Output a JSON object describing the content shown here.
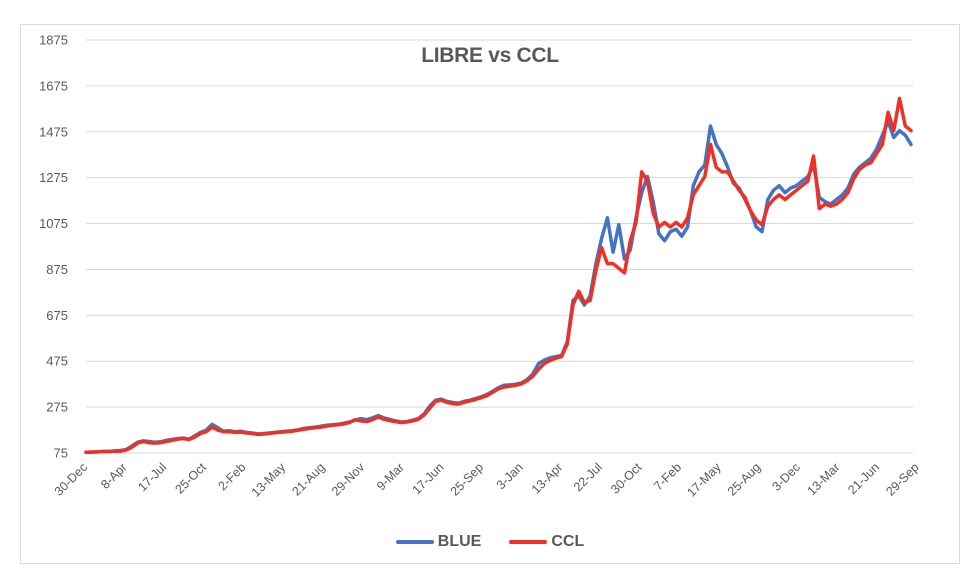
{
  "chart_data": {
    "type": "line",
    "title": "LIBRE vs CCL",
    "xlabel": "",
    "ylabel": "",
    "ylim": [
      75,
      1875
    ],
    "yticks": [
      75,
      275,
      475,
      675,
      875,
      1075,
      1275,
      1475,
      1675,
      1875
    ],
    "grid": true,
    "legend_position": "bottom",
    "x_tick_labels": [
      "30-Dec",
      "8-Apr",
      "17-Jul",
      "25-Oct",
      "2-Feb",
      "13-May",
      "21-Aug",
      "29-Nov",
      "9-Mar",
      "17-Jun",
      "25-Sep",
      "3-Jan",
      "13-Apr",
      "22-Jul",
      "30-Oct",
      "7-Feb",
      "17-May",
      "25-Aug",
      "3-Dec",
      "13-Mar",
      "21-Jun",
      "29-Sep"
    ],
    "x_tick_labels_note": "Daily series spanning ~6 years; labels every ~99 days",
    "series": [
      {
        "name": "BLUE",
        "color": "#4472C4",
        "values": [
          78,
          79,
          80,
          82,
          81,
          84,
          86,
          90,
          105,
          122,
          128,
          125,
          122,
          124,
          130,
          134,
          138,
          140,
          135,
          150,
          165,
          175,
          200,
          185,
          170,
          172,
          168,
          170,
          165,
          162,
          158,
          160,
          162,
          165,
          168,
          170,
          172,
          176,
          182,
          185,
          188,
          192,
          196,
          198,
          200,
          205,
          210,
          218,
          225,
          220,
          228,
          238,
          228,
          222,
          215,
          210,
          212,
          218,
          225,
          245,
          280,
          305,
          310,
          300,
          295,
          292,
          300,
          305,
          312,
          320,
          330,
          345,
          360,
          370,
          372,
          375,
          380,
          395,
          420,
          465,
          480,
          490,
          495,
          500,
          560,
          740,
          760,
          720,
          760,
          900,
          1010,
          1100,
          950,
          1070,
          920,
          960,
          1100,
          1210,
          1280,
          1170,
          1030,
          1000,
          1040,
          1050,
          1020,
          1060,
          1240,
          1300,
          1330,
          1500,
          1420,
          1380,
          1320,
          1250,
          1230,
          1180,
          1130,
          1060,
          1040,
          1180,
          1220,
          1240,
          1210,
          1230,
          1240,
          1260,
          1280,
          1330,
          1190,
          1170,
          1160,
          1180,
          1200,
          1230,
          1290,
          1320,
          1340,
          1360,
          1400,
          1460,
          1520,
          1450,
          1480,
          1460,
          1420
        ]
      },
      {
        "name": "CCL",
        "color": "#EE3124",
        "values": [
          78,
          79,
          80,
          81,
          82,
          82,
          83,
          88,
          100,
          118,
          125,
          120,
          118,
          120,
          125,
          130,
          135,
          138,
          133,
          145,
          160,
          168,
          188,
          175,
          168,
          168,
          165,
          166,
          162,
          160,
          156,
          158,
          160,
          163,
          166,
          168,
          170,
          174,
          178,
          182,
          185,
          188,
          192,
          196,
          198,
          202,
          208,
          220,
          215,
          212,
          220,
          232,
          222,
          216,
          212,
          208,
          210,
          215,
          222,
          240,
          270,
          300,
          305,
          296,
          290,
          288,
          296,
          302,
          308,
          316,
          325,
          340,
          355,
          362,
          366,
          370,
          376,
          390,
          410,
          440,
          465,
          478,
          488,
          495,
          550,
          720,
          780,
          730,
          740,
          870,
          970,
          900,
          900,
          880,
          860,
          1000,
          1080,
          1300,
          1260,
          1120,
          1060,
          1080,
          1060,
          1080,
          1060,
          1100,
          1200,
          1240,
          1280,
          1420,
          1320,
          1300,
          1300,
          1260,
          1220,
          1190,
          1130,
          1090,
          1070,
          1150,
          1180,
          1200,
          1180,
          1200,
          1220,
          1240,
          1260,
          1370,
          1140,
          1160,
          1150,
          1160,
          1180,
          1210,
          1270,
          1310,
          1330,
          1340,
          1380,
          1420,
          1560,
          1480,
          1620,
          1500,
          1480
        ]
      }
    ]
  },
  "legend": {
    "items": [
      {
        "label": "BLUE",
        "color": "#4472C4"
      },
      {
        "label": "CCL",
        "color": "#EE3124"
      }
    ]
  }
}
